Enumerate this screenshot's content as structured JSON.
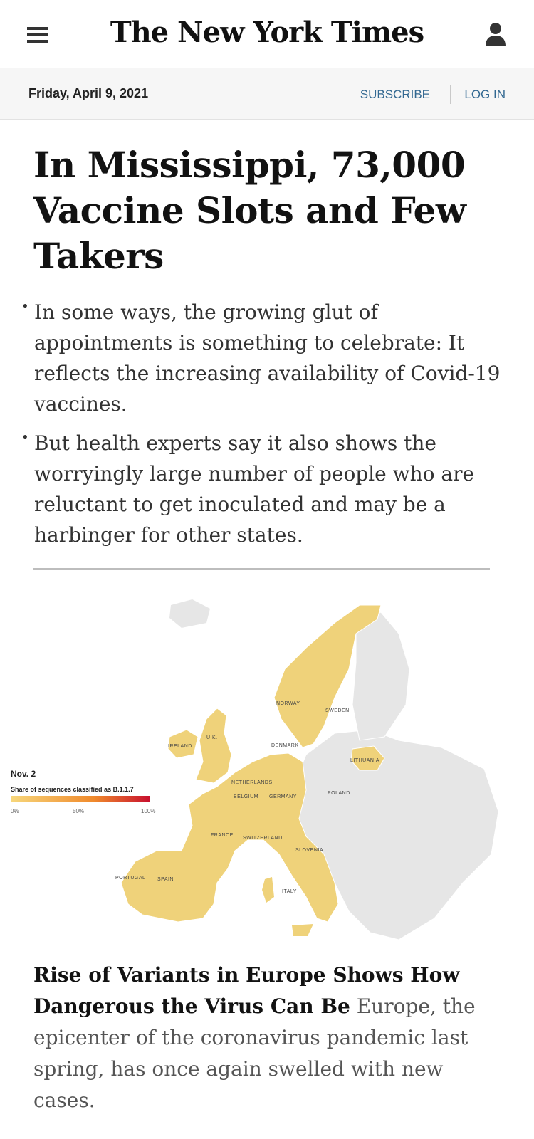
{
  "header": {
    "logo": "The New York Times",
    "date": "Friday, April 9, 2021",
    "subscribe": "SUBSCRIBE",
    "login": "LOG IN"
  },
  "article": {
    "headline": "In Mississippi, 73,000 Vaccine Slots and Few Takers",
    "bullets": [
      "In some ways, the growing glut of appointments is something to celebrate: It reflects the increasing availability of Covid-19 vaccines.",
      "But health experts say it also shows the worryingly large number of people who are reluctant to get inoculated and may be a harbinger for other states."
    ]
  },
  "map": {
    "legend_date": "Nov. 2",
    "legend_title": "Share of sequences classified as B.1.1.7",
    "legend_ticks": [
      "0%",
      "50%",
      "100%"
    ],
    "colors": {
      "low": "#f7d77b",
      "high": "#c8102e",
      "land": "#e6e6e6",
      "highlight": "#efd27a"
    },
    "countries": [
      "NORWAY",
      "SWEDEN",
      "U.K.",
      "IRELAND",
      "DENMARK",
      "LITHUANIA",
      "NETHERLANDS",
      "BELGIUM",
      "GERMANY",
      "POLAND",
      "FRANCE",
      "SWITZERLAND",
      "SLOVENIA",
      "PORTUGAL",
      "SPAIN",
      "ITALY"
    ]
  },
  "story": {
    "title": "Rise of Variants in Europe Shows How Dangerous the Virus Can Be",
    "summary": "Europe, the epicenter of the coronavirus pandemic last spring, has once again swelled with new cases."
  }
}
